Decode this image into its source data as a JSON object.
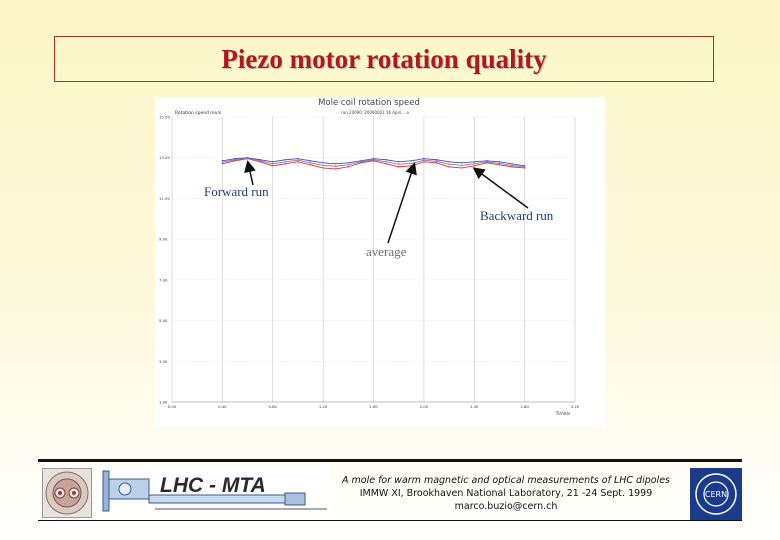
{
  "slide": {
    "title": "Piezo motor rotation quality",
    "annotations": {
      "forward": "Forward run",
      "backward": "Backward run",
      "average": "average"
    }
  },
  "chart_data": {
    "type": "line",
    "title": "Mole coil rotation speed",
    "legend": "Rotation speed  rev/s",
    "subtitle": "run 20090. 20090001 16 April, ..o",
    "xlabel": "Time/s",
    "xticks": [
      "0.00",
      "0.40",
      "0.80",
      "1.20",
      "1.60",
      "2.00",
      "2.40",
      "2.80",
      "3.20"
    ],
    "yticks": [
      "15.00",
      "13.00",
      "11.00",
      "9.00",
      "7.00",
      "5.00",
      "3.00",
      "1.00"
    ],
    "xlim": [
      0,
      3.2
    ],
    "ylim": [
      1,
      15
    ],
    "grid": true,
    "series": [
      {
        "color": "#3d52c9",
        "x": [
          0.4,
          0.5,
          0.6,
          0.7,
          0.8,
          0.9,
          1.0,
          1.1,
          1.2,
          1.3,
          1.4,
          1.5,
          1.6,
          1.7,
          1.8,
          1.9,
          2.0,
          2.1,
          2.2,
          2.3,
          2.4,
          2.5,
          2.6,
          2.7,
          2.8
        ],
        "values": [
          12.85,
          12.95,
          13.0,
          12.9,
          12.8,
          12.9,
          12.95,
          12.85,
          12.75,
          12.7,
          12.75,
          12.85,
          12.95,
          12.9,
          12.8,
          12.85,
          12.95,
          12.9,
          12.8,
          12.75,
          12.8,
          12.85,
          12.8,
          12.7,
          12.6
        ]
      },
      {
        "color": "#d23b32",
        "x": [
          0.4,
          0.5,
          0.6,
          0.7,
          0.8,
          0.9,
          1.0,
          1.1,
          1.2,
          1.3,
          1.4,
          1.5,
          1.6,
          1.7,
          1.8,
          1.9,
          2.0,
          2.1,
          2.2,
          2.3,
          2.4,
          2.5,
          2.6,
          2.7,
          2.8
        ],
        "values": [
          12.7,
          12.85,
          12.95,
          12.8,
          12.6,
          12.7,
          12.8,
          12.65,
          12.5,
          12.45,
          12.55,
          12.75,
          12.85,
          12.7,
          12.55,
          12.6,
          12.8,
          12.75,
          12.55,
          12.5,
          12.6,
          12.75,
          12.65,
          12.55,
          12.5
        ]
      },
      {
        "color": "#9a6fb0",
        "x": [
          0.4,
          0.5,
          0.6,
          0.7,
          0.8,
          0.9,
          1.0,
          1.1,
          1.2,
          1.3,
          1.4,
          1.5,
          1.6,
          1.7,
          1.8,
          1.9,
          2.0,
          2.1,
          2.2,
          2.3,
          2.4,
          2.5,
          2.6,
          2.7,
          2.8
        ],
        "values": [
          12.78,
          12.9,
          12.98,
          12.85,
          12.7,
          12.8,
          12.88,
          12.75,
          12.62,
          12.58,
          12.65,
          12.8,
          12.9,
          12.8,
          12.68,
          12.72,
          12.88,
          12.82,
          12.68,
          12.62,
          12.7,
          12.8,
          12.72,
          12.62,
          12.55
        ]
      }
    ]
  },
  "footer": {
    "banner_label": "LHC - MTA",
    "line1": "A mole for warm magnetic and optical measurements of LHC dipoles",
    "line2": "IMMW XI, Brookhaven National Laboratory, 21 -24 Sept. 1999",
    "line3": "marco.buzio@cern.ch",
    "logo_right_text": "CERN"
  }
}
